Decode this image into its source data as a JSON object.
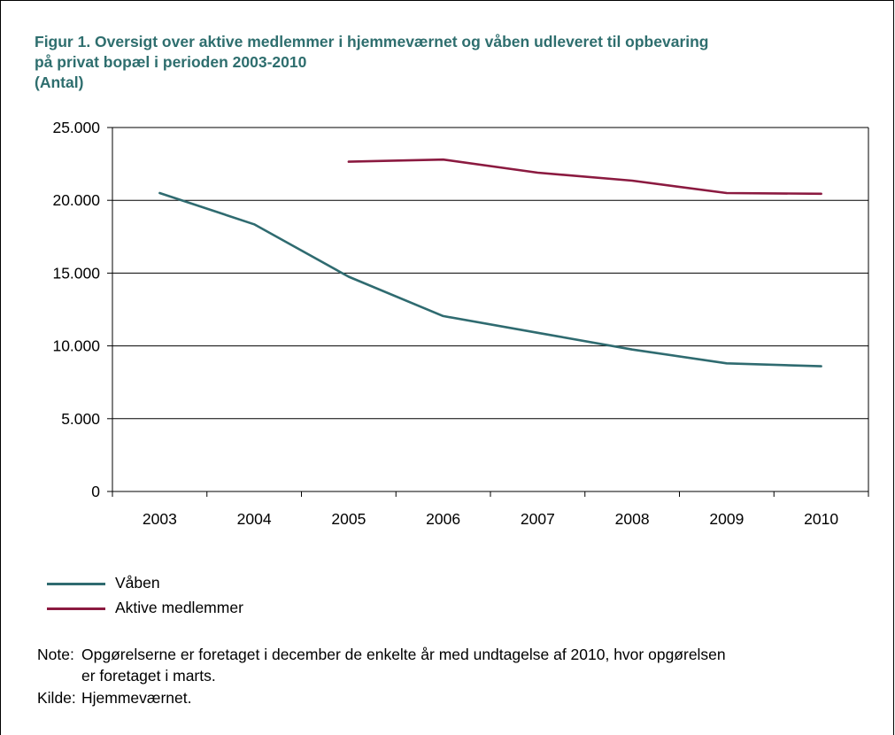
{
  "figure": {
    "title_lines": [
      "Figur 1. Oversigt over aktive medlemmer i hjemmeværnet og våben udleveret til opbevaring",
      "på privat bopæl i perioden 2003-2010",
      "(Antal)"
    ]
  },
  "chart_data": {
    "type": "line",
    "title": "Figur 1. Oversigt over aktive medlemmer i hjemmeværnet og våben udleveret til opbevaring på privat bopæl i perioden 2003-2010 (Antal)",
    "categories": [
      "2003",
      "2004",
      "2005",
      "2006",
      "2007",
      "2008",
      "2009",
      "2010"
    ],
    "y_tick_labels": [
      "0",
      "5.000",
      "10.000",
      "15.000",
      "20.000",
      "25.000"
    ],
    "y_ticks": [
      0,
      5000,
      10000,
      15000,
      20000,
      25000
    ],
    "ylim": [
      0,
      25000
    ],
    "grid": "horizontal",
    "legend_position": "bottom-left",
    "series": [
      {
        "name": "Våben",
        "color": "#2f6b70",
        "values": [
          20500,
          18350,
          14750,
          12050,
          10900,
          9750,
          8800,
          8600
        ]
      },
      {
        "name": "Aktive medlemmer",
        "color": "#8b1a40",
        "values": [
          null,
          null,
          22650,
          22800,
          21900,
          21350,
          20500,
          20450
        ]
      }
    ]
  },
  "notes": {
    "note_label": "Note:",
    "note_line1": "Opgørelserne er foretaget i december de enkelte år med undtagelse af 2010, hvor opgørelsen",
    "note_line2": "er foretaget i marts.",
    "source_label": "Kilde:",
    "source_text": "Hjemmeværnet."
  }
}
